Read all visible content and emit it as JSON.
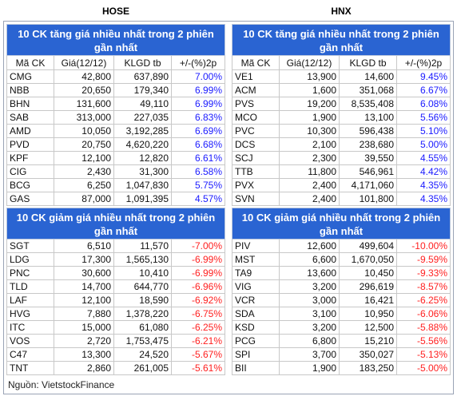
{
  "columns": [
    "Mã CK",
    "Giá(12/12)",
    "KLGD tb",
    "+/-(%)2p"
  ],
  "sections": [
    {
      "exchange": "HOSE",
      "gainers": {
        "title": "10 CK tăng giá nhiều nhất trong 2 phiên gần nhất",
        "rows": [
          [
            "CMG",
            "42,800",
            "637,890",
            "7.00%"
          ],
          [
            "NBB",
            "20,650",
            "179,340",
            "6.99%"
          ],
          [
            "BHN",
            "131,600",
            "49,110",
            "6.99%"
          ],
          [
            "SAB",
            "313,000",
            "227,035",
            "6.83%"
          ],
          [
            "AMD",
            "10,050",
            "3,192,285",
            "6.69%"
          ],
          [
            "PVD",
            "20,750",
            "4,620,220",
            "6.68%"
          ],
          [
            "KPF",
            "12,100",
            "12,820",
            "6.61%"
          ],
          [
            "CIG",
            "2,430",
            "31,300",
            "6.58%"
          ],
          [
            "BCG",
            "6,250",
            "1,047,830",
            "5.75%"
          ],
          [
            "GAS",
            "87,000",
            "1,091,395",
            "4.57%"
          ]
        ]
      },
      "losers": {
        "title": "10 CK giảm giá nhiều nhất trong 2 phiên gần nhất",
        "rows": [
          [
            "SGT",
            "6,510",
            "11,570",
            "-7.00%"
          ],
          [
            "LDG",
            "17,300",
            "1,565,130",
            "-6.99%"
          ],
          [
            "PNC",
            "30,600",
            "10,410",
            "-6.99%"
          ],
          [
            "TLD",
            "14,700",
            "644,770",
            "-6.96%"
          ],
          [
            "LAF",
            "12,100",
            "18,590",
            "-6.92%"
          ],
          [
            "HVG",
            "7,880",
            "1,378,220",
            "-6.75%"
          ],
          [
            "ITC",
            "15,000",
            "61,080",
            "-6.25%"
          ],
          [
            "VOS",
            "2,720",
            "1,753,475",
            "-6.21%"
          ],
          [
            "C47",
            "13,300",
            "24,520",
            "-5.67%"
          ],
          [
            "TNT",
            "2,860",
            "261,005",
            "-5.61%"
          ]
        ]
      }
    },
    {
      "exchange": "HNX",
      "gainers": {
        "title": "10 CK tăng giá nhiều nhất trong 2 phiên gần nhất",
        "rows": [
          [
            "VE1",
            "13,900",
            "14,600",
            "9.45%"
          ],
          [
            "ACM",
            "1,600",
            "351,068",
            "6.67%"
          ],
          [
            "PVS",
            "19,200",
            "8,535,408",
            "6.08%"
          ],
          [
            "MCO",
            "1,900",
            "13,100",
            "5.56%"
          ],
          [
            "PVC",
            "10,300",
            "596,438",
            "5.10%"
          ],
          [
            "DCS",
            "2,100",
            "238,680",
            "5.00%"
          ],
          [
            "SCJ",
            "2,300",
            "39,550",
            "4.55%"
          ],
          [
            "TTB",
            "11,800",
            "546,961",
            "4.42%"
          ],
          [
            "PVX",
            "2,400",
            "4,171,060",
            "4.35%"
          ],
          [
            "SVN",
            "2,400",
            "101,800",
            "4.35%"
          ]
        ]
      },
      "losers": {
        "title": "10 CK giảm giá nhiều nhất trong 2 phiên gần nhất",
        "rows": [
          [
            "PIV",
            "12,600",
            "499,604",
            "-10.00%"
          ],
          [
            "MST",
            "6,600",
            "1,670,050",
            "-9.59%"
          ],
          [
            "TA9",
            "13,600",
            "10,450",
            "-9.33%"
          ],
          [
            "VIG",
            "3,200",
            "296,619",
            "-8.57%"
          ],
          [
            "VCR",
            "3,000",
            "16,421",
            "-6.25%"
          ],
          [
            "SDA",
            "3,100",
            "10,950",
            "-6.06%"
          ],
          [
            "KSD",
            "3,200",
            "12,500",
            "-5.88%"
          ],
          [
            "PCG",
            "6,800",
            "15,210",
            "-5.56%"
          ],
          [
            "SPI",
            "3,700",
            "350,027",
            "-5.13%"
          ],
          [
            "BII",
            "1,900",
            "183,250",
            "-5.00%"
          ]
        ]
      }
    }
  ],
  "source": "Nguồn: VietstockFinance"
}
